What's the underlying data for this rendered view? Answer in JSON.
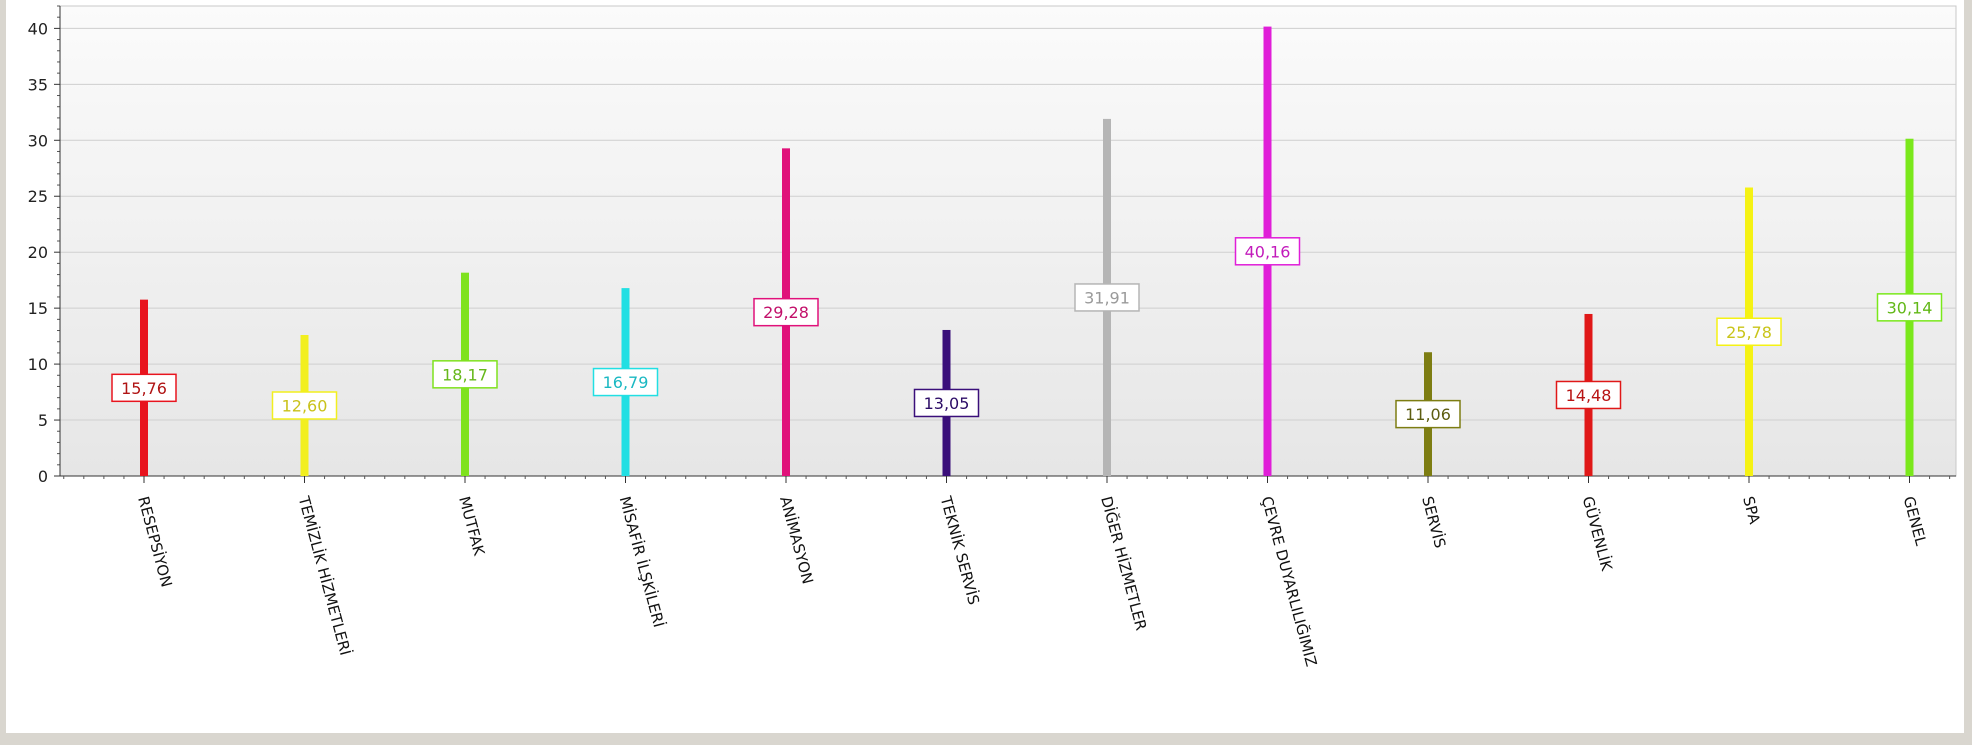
{
  "chart_data": {
    "type": "bar",
    "title": "",
    "xlabel": "",
    "ylabel": "",
    "ylim": [
      0,
      42
    ],
    "yticks": [
      0,
      5,
      10,
      15,
      20,
      25,
      30,
      35,
      40
    ],
    "grid": true,
    "legend": "none",
    "categories": [
      "RESEPSİYON",
      "TEMİZLİK HİZMETLERİ",
      "MUTFAK",
      "MİSAFİR İLŞKİLERİ",
      "ANİMASYON",
      "TEKNİK SERVİS",
      "DİĞER HİZMETLER",
      "ÇEVRE DUYARLILIĞIMIZ",
      "SERVİS",
      "GÜVENLİK",
      "SPA",
      "GENEL"
    ],
    "values": [
      15.76,
      12.6,
      18.17,
      16.79,
      29.28,
      13.05,
      31.91,
      40.16,
      11.06,
      14.48,
      25.78,
      30.14
    ],
    "value_labels": [
      "15,76",
      "12,60",
      "18,17",
      "16,79",
      "29,28",
      "13,05",
      "31,91",
      "40,16",
      "11,06",
      "14,48",
      "25,78",
      "30,14"
    ],
    "colors": [
      "#e8141e",
      "#f2ef1f",
      "#7fe21e",
      "#21dfe3",
      "#e0117a",
      "#3a0f7a",
      "#b5b5b5",
      "#e01ed8",
      "#7d7d12",
      "#e01818",
      "#f5f214",
      "#7ae81b"
    ],
    "label_text_colors": [
      "#b01414",
      "#c9c21a",
      "#66b81a",
      "#1ab8c2",
      "#c2106a",
      "#2c0c66",
      "#9a9a9a",
      "#c21abb",
      "#5d5d10",
      "#b81414",
      "#c9c41a",
      "#62b817"
    ]
  }
}
